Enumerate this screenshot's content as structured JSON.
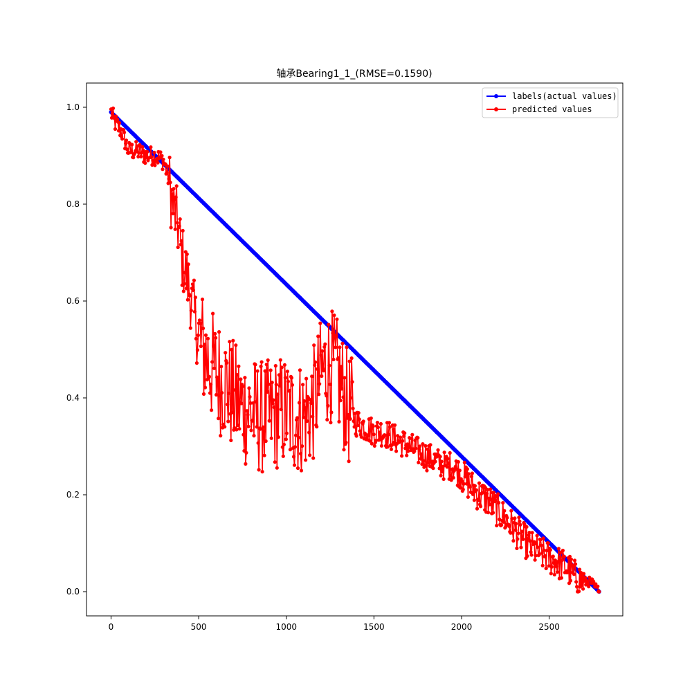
{
  "chart_data": {
    "type": "line",
    "title": "轴承Bearing1_1_(RMSE=0.1590)",
    "xlabel": "",
    "ylabel": "",
    "xlim": [
      -140,
      2920
    ],
    "ylim": [
      -0.05,
      1.05
    ],
    "x_ticks": [
      0,
      500,
      1000,
      1500,
      2000,
      2500
    ],
    "y_ticks": [
      0.0,
      0.2,
      0.4,
      0.6,
      0.8,
      1.0
    ],
    "x_tick_labels": [
      "0",
      "500",
      "1000",
      "1500",
      "2000",
      "2500"
    ],
    "y_tick_labels": [
      "0.0",
      "0.2",
      "0.4",
      "0.6",
      "0.8",
      "1.0"
    ],
    "grid": false,
    "legend_position": "top-right",
    "series": [
      {
        "name": "labels(actual values)",
        "color": "#0000ff",
        "marker": "circle",
        "x": [
          0,
          2785
        ],
        "y": [
          0.99,
          0.0
        ]
      },
      {
        "name": "predicted values",
        "color": "#ff0000",
        "marker": "circle",
        "x": [
          0,
          20,
          40,
          60,
          80,
          100,
          150,
          200,
          250,
          300,
          330,
          350,
          380,
          400,
          450,
          500,
          550,
          600,
          650,
          700,
          750,
          800,
          850,
          900,
          950,
          1000,
          1050,
          1100,
          1150,
          1200,
          1250,
          1300,
          1350,
          1400,
          1450,
          1500,
          1550,
          1600,
          1650,
          1700,
          1750,
          1800,
          1850,
          1900,
          1950,
          2000,
          2050,
          2100,
          2150,
          2200,
          2250,
          2300,
          2350,
          2400,
          2450,
          2500,
          2550,
          2600,
          2650,
          2700,
          2740,
          2760,
          2785
        ],
        "y": [
          0.99,
          0.97,
          0.96,
          0.95,
          0.93,
          0.91,
          0.91,
          0.9,
          0.9,
          0.89,
          0.85,
          0.8,
          0.76,
          0.7,
          0.62,
          0.52,
          0.48,
          0.45,
          0.43,
          0.4,
          0.38,
          0.37,
          0.36,
          0.36,
          0.37,
          0.37,
          0.36,
          0.36,
          0.38,
          0.45,
          0.47,
          0.44,
          0.38,
          0.35,
          0.34,
          0.33,
          0.33,
          0.32,
          0.31,
          0.3,
          0.29,
          0.28,
          0.27,
          0.26,
          0.26,
          0.24,
          0.22,
          0.2,
          0.19,
          0.17,
          0.15,
          0.13,
          0.11,
          0.09,
          0.08,
          0.07,
          0.06,
          0.05,
          0.03,
          0.02,
          0.02,
          0.01,
          0.0
        ]
      }
    ]
  }
}
